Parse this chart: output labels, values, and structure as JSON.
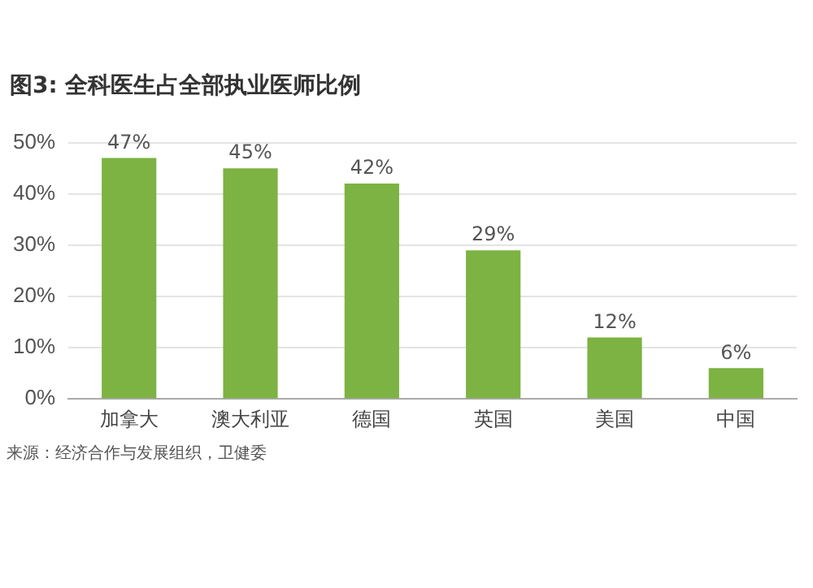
{
  "chart_data": {
    "type": "bar",
    "title": "图3: 全科医生占全部执业医师比例",
    "categories": [
      "加拿大",
      "澳大利亚",
      "德国",
      "英国",
      "美国",
      "中国"
    ],
    "values": [
      47,
      45,
      42,
      29,
      12,
      6
    ],
    "color": "#7cb342",
    "value_labels": [
      "47%",
      "45%",
      "42%",
      "29%",
      "12%",
      "6%"
    ],
    "ylim": [
      0,
      50
    ],
    "yticks": [
      {
        "value": 0,
        "label": "0%"
      },
      {
        "value": 10,
        "label": "10%"
      },
      {
        "value": 20,
        "label": "20%"
      },
      {
        "value": 30,
        "label": "30%"
      },
      {
        "value": 40,
        "label": "40%"
      },
      {
        "value": 50,
        "label": "50%"
      }
    ],
    "grid": "y",
    "annotations": [
      "来源：经济合作与发展组织，卫健委"
    ]
  }
}
